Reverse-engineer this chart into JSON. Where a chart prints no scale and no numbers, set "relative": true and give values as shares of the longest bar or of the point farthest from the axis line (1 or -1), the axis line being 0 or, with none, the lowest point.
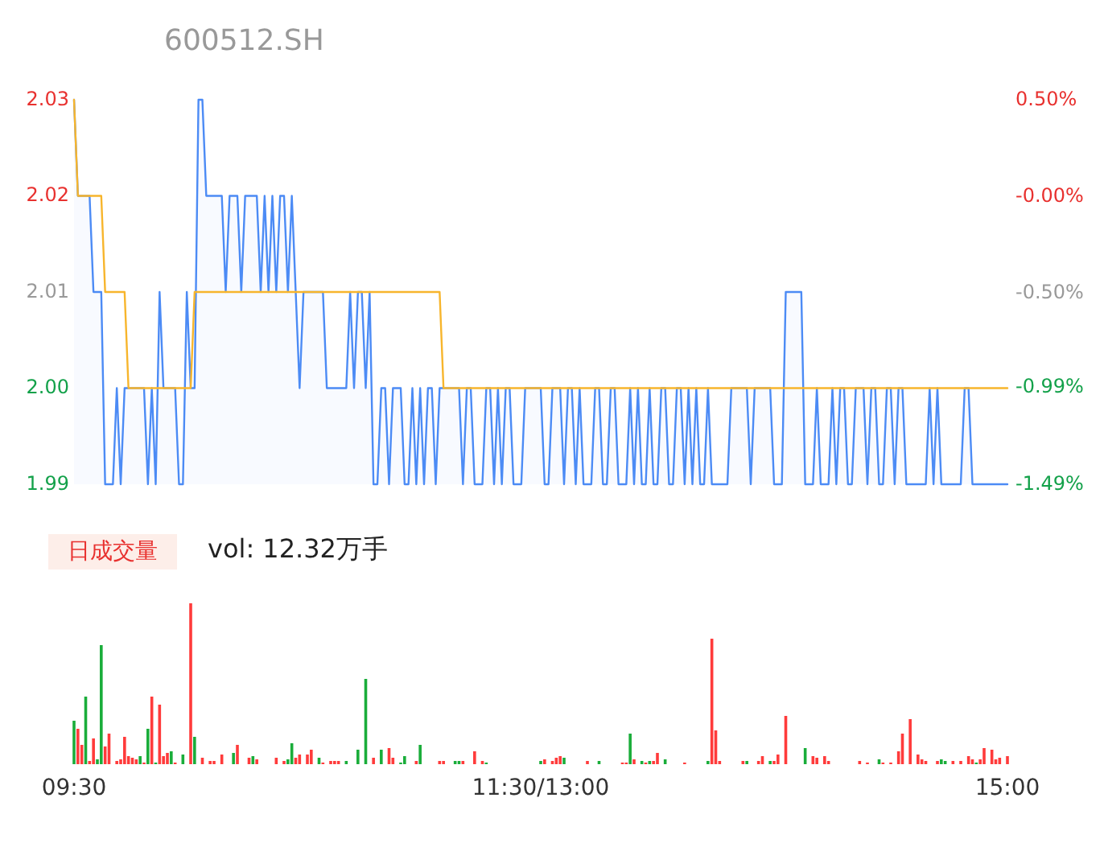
{
  "chart_data": [
    {
      "type": "line",
      "title": "600512.SH",
      "ylim": [
        1.99,
        2.03
      ],
      "yticks": [
        1.99,
        {
          "value": 2,
          "label": "2.00"
        },
        2.01,
        2.02,
        2.03
      ],
      "y2lim": [
        -1.49,
        0.5
      ],
      "y2ticks": [
        {
          "value": -1.49,
          "label": "-1.49%"
        },
        {
          "value": -0.99,
          "label": "-0.99%"
        },
        {
          "value": -0.5,
          "label": "-0.50%"
        },
        {
          "value": 0,
          "label": "-0.00%"
        },
        {
          "value": 0.5,
          "label": "0.50%"
        }
      ],
      "tick_labels": "y",
      "categories": [
        null,
        null,
        null,
        null,
        null,
        null,
        null,
        null,
        null,
        null,
        null,
        null,
        null,
        null,
        null,
        null,
        null,
        null,
        null,
        null,
        null,
        null,
        null,
        null,
        null,
        null,
        null,
        null,
        null,
        null,
        null,
        null,
        null,
        null,
        null,
        null,
        null,
        null,
        null,
        null,
        null,
        null,
        null,
        null,
        null,
        null,
        null,
        null,
        null,
        null,
        null,
        null,
        null,
        null,
        null,
        null,
        null,
        null,
        null,
        null,
        null,
        null,
        null,
        null,
        null,
        null,
        null,
        null,
        null,
        null,
        null,
        null,
        null,
        null,
        null,
        null,
        null,
        null,
        null,
        null,
        null,
        null,
        null,
        null,
        null,
        null,
        null,
        null,
        null,
        null,
        null,
        null,
        null,
        null,
        null,
        null,
        null,
        null,
        null,
        null,
        null,
        null,
        null,
        null,
        null,
        null,
        null,
        null,
        null,
        null,
        null,
        null,
        null,
        null,
        null,
        null,
        null,
        null,
        null,
        null,
        null,
        null,
        null,
        null,
        null,
        null,
        null,
        null,
        null,
        null,
        null,
        null,
        null,
        null,
        null,
        null,
        null,
        null,
        null,
        null,
        null,
        null,
        null,
        null,
        null,
        null,
        null,
        null,
        null,
        null,
        null,
        null,
        null,
        null,
        null,
        null,
        null,
        null,
        null,
        null,
        null,
        null,
        null,
        null,
        null,
        null,
        null,
        null,
        null,
        null,
        null,
        null,
        null,
        null,
        null,
        null,
        null,
        null,
        null,
        null,
        null,
        null,
        null,
        null,
        null,
        null,
        null,
        null,
        null,
        null,
        null,
        null,
        null,
        null,
        null,
        null,
        null,
        null,
        null,
        null,
        null,
        null,
        null,
        null,
        null,
        null,
        null,
        null,
        null,
        null,
        null,
        null,
        null,
        null,
        null,
        null,
        null,
        null,
        null,
        null,
        null,
        null,
        null,
        null,
        null,
        null,
        null,
        null,
        null,
        null,
        null,
        null,
        null,
        null,
        null,
        null,
        null,
        null,
        null,
        null,
        null
      ],
      "series": [
        {
          "type": "area",
          "color": "#4c8bf5",
          "values": [
            2.03,
            2.02,
            2.02,
            2.02,
            2.02,
            2.01,
            2.01,
            2.01,
            1.99,
            1.99,
            1.99,
            2.0,
            1.99,
            2.0,
            2.0,
            2.0,
            2.0,
            2.0,
            2.0,
            1.99,
            2.0,
            1.99,
            2.01,
            2.0,
            2.0,
            2.0,
            2.0,
            1.99,
            1.99,
            2.01,
            2.0,
            2.0,
            2.03,
            2.03,
            2.02,
            2.02,
            2.02,
            2.02,
            2.02,
            2.01,
            2.02,
            2.02,
            2.02,
            2.01,
            2.02,
            2.02,
            2.02,
            2.02,
            2.01,
            2.02,
            2.01,
            2.02,
            2.01,
            2.02,
            2.02,
            2.01,
            2.02,
            2.01,
            2.0,
            2.01,
            2.01,
            2.01,
            2.01,
            2.01,
            2.01,
            2.0,
            2.0,
            2.0,
            2.0,
            2.0,
            2.0,
            2.01,
            2.0,
            2.01,
            2.01,
            2.0,
            2.01,
            1.99,
            1.99,
            2.0,
            2.0,
            1.99,
            2.0,
            2.0,
            2.0,
            1.99,
            1.99,
            2.0,
            1.99,
            2.0,
            1.99,
            2.0,
            2.0,
            1.99,
            2.0,
            2.0,
            2.0,
            2.0,
            2.0,
            2.0,
            1.99,
            2.0,
            2.0,
            1.99,
            1.99,
            1.99,
            2.0,
            2.0,
            1.99,
            2.0,
            1.99,
            2.0,
            2.0,
            1.99,
            1.99,
            1.99,
            2.0,
            2.0,
            2.0,
            2.0,
            2.0,
            1.99,
            1.99,
            2.0,
            2.0,
            2.0,
            1.99,
            2.0,
            2.0,
            1.99,
            2.0,
            1.99,
            1.99,
            1.99,
            2.0,
            2.0,
            1.99,
            1.99,
            2.0,
            2.0,
            1.99,
            1.99,
            1.99,
            2.0,
            1.99,
            2.0,
            1.99,
            1.99,
            2.0,
            1.99,
            1.99,
            2.0,
            2.0,
            1.99,
            1.99,
            2.0,
            2.0,
            1.99,
            2.0,
            1.99,
            2.0,
            1.99,
            1.99,
            2.0,
            1.99,
            1.99,
            1.99,
            1.99,
            1.99,
            2.0,
            2.0,
            2.0,
            2.0,
            2.0,
            1.99,
            2.0,
            2.0,
            2.0,
            2.0,
            2.0,
            1.99,
            1.99,
            1.99,
            2.01,
            2.01,
            2.01,
            2.01,
            2.01,
            1.99,
            1.99,
            1.99,
            2.0,
            1.99,
            1.99,
            1.99,
            2.0,
            1.99,
            2.0,
            2.0,
            1.99,
            1.99,
            2.0,
            2.0,
            2.0,
            1.99,
            2.0,
            2.0,
            1.99,
            1.99,
            2.0,
            2.0,
            1.99,
            2.0,
            2.0,
            1.99,
            1.99,
            1.99,
            1.99,
            1.99,
            1.99,
            2.0,
            1.99,
            2.0,
            1.99,
            1.99,
            1.99,
            1.99,
            1.99,
            1.99,
            2.0,
            2.0,
            1.99,
            1.99,
            1.99,
            1.99,
            1.99,
            1.99,
            1.99,
            1.99,
            1.99,
            1.99
          ]
        },
        {
          "color": "#f7b52c",
          "values": [
            2.03,
            2.02,
            2.02,
            2.02,
            2.02,
            2.02,
            2.02,
            2.02,
            2.01,
            2.01,
            2.01,
            2.01,
            2.01,
            2.01,
            2.0,
            2.0,
            2.0,
            2.0,
            2.0,
            2.0,
            2.0,
            2.0,
            2.0,
            2.0,
            2.0,
            2.0,
            2.0,
            2.0,
            2.0,
            2.0,
            2.0,
            2.01,
            2.01,
            2.01,
            2.01,
            2.01,
            2.01,
            2.01,
            2.01,
            2.01,
            2.01,
            2.01,
            2.01,
            2.01,
            2.01,
            2.01,
            2.01,
            2.01,
            2.01,
            2.01,
            2.01,
            2.01,
            2.01,
            2.01,
            2.01,
            2.01,
            2.01,
            2.01,
            2.01,
            2.01,
            2.01,
            2.01,
            2.01,
            2.01,
            2.01,
            2.01,
            2.01,
            2.01,
            2.01,
            2.01,
            2.01,
            2.01,
            2.01,
            2.01,
            2.01,
            2.01,
            2.01,
            2.01,
            2.01,
            2.01,
            2.01,
            2.01,
            2.01,
            2.01,
            2.01,
            2.01,
            2.01,
            2.01,
            2.01,
            2.01,
            2.01,
            2.01,
            2.01,
            2.01,
            2.01,
            2.0,
            2.0,
            2.0,
            2.0,
            2.0,
            2.0,
            2.0,
            2.0,
            2.0,
            2.0,
            2.0,
            2.0,
            2.0,
            2.0,
            2.0,
            2.0,
            2.0,
            2.0,
            2.0,
            2.0,
            2.0,
            2.0,
            2.0,
            2.0,
            2.0,
            2.0,
            2.0,
            2.0,
            2.0,
            2.0,
            2.0,
            2.0,
            2.0,
            2.0,
            2.0,
            2.0,
            2.0,
            2.0,
            2.0,
            2.0,
            2.0,
            2.0,
            2.0,
            2.0,
            2.0,
            2.0,
            2.0,
            2.0,
            2.0,
            2.0,
            2.0,
            2.0,
            2.0,
            2.0,
            2.0,
            2.0,
            2.0,
            2.0,
            2.0,
            2.0,
            2.0,
            2.0,
            2.0,
            2.0,
            2.0,
            2.0,
            2.0,
            2.0,
            2.0,
            2.0,
            2.0,
            2.0,
            2.0,
            2.0,
            2.0,
            2.0,
            2.0,
            2.0,
            2.0,
            2.0,
            2.0,
            2.0,
            2.0,
            2.0,
            2.0,
            2.0,
            2.0,
            2.0,
            2.0,
            2.0,
            2.0,
            2.0,
            2.0,
            2.0,
            2.0,
            2.0,
            2.0,
            2.0,
            2.0,
            2.0,
            2.0,
            2.0,
            2.0,
            2.0,
            2.0,
            2.0,
            2.0,
            2.0,
            2.0,
            2.0,
            2.0,
            2.0,
            2.0,
            2.0,
            2.0,
            2.0,
            2.0,
            2.0,
            2.0,
            2.0,
            2.0,
            2.0,
            2.0,
            2.0,
            2.0,
            2.0,
            2.0,
            2.0,
            2.0,
            2.0,
            2.0,
            2.0,
            2.0,
            2.0,
            2.0,
            2.0,
            2.0,
            2.0,
            2.0,
            2.0,
            2.0,
            2.0,
            2.0,
            2.0,
            2.0,
            2.0
          ]
        }
      ]
    },
    {
      "type": "bar",
      "title": "日成交量",
      "subtitle": "vol: 12.32万手",
      "relative": true,
      "tick_labels": "x",
      "categories": [
        "09:30",
        null,
        null,
        null,
        null,
        null,
        null,
        null,
        null,
        null,
        null,
        null,
        null,
        null,
        null,
        null,
        null,
        null,
        null,
        null,
        null,
        null,
        null,
        null,
        null,
        null,
        null,
        null,
        null,
        null,
        null,
        null,
        null,
        null,
        null,
        null,
        null,
        null,
        null,
        null,
        null,
        null,
        null,
        null,
        null,
        null,
        null,
        null,
        null,
        null,
        null,
        null,
        null,
        null,
        null,
        null,
        null,
        null,
        null,
        null,
        null,
        null,
        null,
        null,
        null,
        null,
        null,
        null,
        null,
        null,
        null,
        null,
        null,
        null,
        null,
        null,
        null,
        null,
        null,
        null,
        null,
        null,
        null,
        null,
        null,
        null,
        null,
        null,
        null,
        null,
        null,
        null,
        null,
        null,
        null,
        null,
        null,
        null,
        null,
        null,
        null,
        null,
        null,
        null,
        null,
        null,
        null,
        null,
        null,
        null,
        null,
        null,
        null,
        null,
        null,
        null,
        null,
        null,
        null,
        null,
        "11:30/13:00",
        null,
        null,
        null,
        null,
        null,
        null,
        null,
        null,
        null,
        null,
        null,
        null,
        null,
        null,
        null,
        null,
        null,
        null,
        null,
        null,
        null,
        null,
        null,
        null,
        null,
        null,
        null,
        null,
        null,
        null,
        null,
        null,
        null,
        null,
        null,
        null,
        null,
        null,
        null,
        null,
        null,
        null,
        null,
        null,
        null,
        null,
        null,
        null,
        null,
        null,
        null,
        null,
        null,
        null,
        null,
        null,
        null,
        null,
        null,
        null,
        null,
        null,
        null,
        null,
        null,
        null,
        null,
        null,
        null,
        null,
        null,
        null,
        null,
        null,
        null,
        null,
        null,
        null,
        null,
        null,
        null,
        null,
        null,
        null,
        null,
        null,
        null,
        null,
        null,
        null,
        null,
        null,
        null,
        null,
        null,
        null,
        null,
        null,
        null,
        null,
        null,
        null,
        null,
        null,
        null,
        null,
        null,
        null,
        null,
        null,
        null,
        null,
        null,
        null,
        null,
        null,
        null,
        null,
        null,
        "15:00"
      ],
      "series": [
        {
          "color": "#ff3b3b",
          "values": [
            null,
            0.22,
            0.12,
            null,
            0.02,
            0.16,
            null,
            null,
            0.11,
            0.19,
            null,
            0.02,
            0.03,
            0.17,
            0.05,
            0.04,
            0.03,
            null,
            0.01,
            null,
            0.42,
            null,
            0.37,
            0.05,
            0.07,
            null,
            0.01,
            null,
            null,
            null,
            1.0,
            null,
            null,
            0.04,
            null,
            0.02,
            0.02,
            null,
            0.06,
            null,
            null,
            null,
            0.12,
            null,
            null,
            0.04,
            null,
            0.03,
            null,
            null,
            null,
            null,
            0.04,
            null,
            0.02,
            null,
            null,
            0.04,
            0.06,
            null,
            0.06,
            0.09,
            null,
            null,
            0.01,
            null,
            0.02,
            0.02,
            0.02,
            null,
            null,
            null,
            null,
            null,
            null,
            null,
            null,
            0.04,
            null,
            null,
            null,
            0.1,
            0.04,
            null,
            null,
            null,
            null,
            null,
            0.02,
            null,
            null,
            null,
            null,
            null,
            0.02,
            0.02,
            null,
            null,
            null,
            null,
            0.02,
            null,
            null,
            0.08,
            null,
            0.02,
            null,
            null,
            null,
            null,
            null,
            null,
            null,
            null,
            null,
            null,
            null,
            null,
            null,
            null,
            null,
            0.03,
            null,
            0.02,
            0.04,
            0.05,
            null,
            null,
            null,
            null,
            null,
            null,
            0.02,
            null,
            null,
            null,
            null,
            null,
            null,
            null,
            null,
            0.01,
            0.01,
            null,
            0.03,
            null,
            null,
            0.01,
            null,
            0.02,
            0.07,
            null,
            null,
            null,
            null,
            null,
            null,
            0.01,
            null,
            null,
            null,
            null,
            null,
            null,
            0.78,
            0.21,
            0.02,
            null,
            null,
            null,
            null,
            null,
            0.02,
            null,
            null,
            null,
            0.02,
            0.05,
            null,
            null,
            0.02,
            0.06,
            null,
            0.3,
            null,
            null,
            null,
            null,
            null,
            null,
            0.05,
            0.04,
            null,
            0.05,
            0.02,
            null,
            null,
            null,
            null,
            null,
            null,
            null,
            0.02,
            null,
            0.01,
            null,
            null,
            null,
            0.01,
            null,
            0.01,
            null,
            0.08,
            0.19,
            null,
            0.28,
            null,
            0.06,
            0.03,
            0.02,
            null,
            null,
            0.02,
            null,
            null,
            null,
            0.02,
            null,
            0.02,
            null,
            0.05,
            0.03,
            null,
            0.03,
            0.1,
            null,
            0.09,
            0.03,
            0.04,
            null,
            0.05
          ]
        },
        {
          "color": "#1aad3a",
          "values": [
            0.27,
            null,
            null,
            0.42,
            null,
            null,
            0.03,
            0.74,
            null,
            null,
            null,
            null,
            null,
            null,
            null,
            null,
            null,
            0.05,
            null,
            0.22,
            null,
            0.01,
            null,
            null,
            null,
            0.08,
            null,
            null,
            0.06,
            null,
            null,
            0.17,
            null,
            null,
            null,
            null,
            null,
            null,
            null,
            null,
            null,
            0.07,
            null,
            null,
            null,
            null,
            0.05,
            null,
            null,
            null,
            null,
            null,
            null,
            null,
            null,
            0.03,
            0.13,
            null,
            null,
            null,
            null,
            null,
            null,
            0.04,
            null,
            null,
            null,
            null,
            null,
            null,
            0.02,
            null,
            null,
            0.09,
            null,
            0.53,
            null,
            null,
            null,
            0.09,
            null,
            null,
            null,
            null,
            0.01,
            0.05,
            null,
            null,
            null,
            0.12,
            null,
            null,
            null,
            null,
            null,
            null,
            null,
            null,
            0.02,
            0.02,
            null,
            null,
            null,
            null,
            null,
            null,
            0.01,
            null,
            null,
            null,
            null,
            null,
            null,
            null,
            null,
            null,
            null,
            null,
            null,
            null,
            0.02,
            null,
            null,
            null,
            null,
            null,
            0.04,
            null,
            null,
            null,
            null,
            null,
            null,
            null,
            null,
            0.02,
            null,
            null,
            null,
            null,
            null,
            null,
            null,
            0.19,
            null,
            null,
            0.02,
            null,
            0.02,
            null,
            null,
            null,
            0.03,
            null,
            null,
            null,
            null,
            null,
            null,
            null,
            null,
            null,
            null,
            0.02,
            null,
            null,
            null,
            null,
            null,
            null,
            null,
            null,
            null,
            0.02,
            null,
            null,
            null,
            null,
            null,
            0.02,
            null,
            null,
            null,
            null,
            null,
            null,
            null,
            null,
            0.1,
            null,
            null,
            null,
            null,
            null,
            null,
            null,
            null,
            null,
            null,
            null,
            null,
            null,
            null,
            null,
            null,
            null,
            null,
            0.03,
            null,
            null,
            null,
            null,
            null,
            null,
            null,
            null,
            null,
            null,
            null,
            null,
            null,
            null,
            null,
            0.03,
            0.02,
            null,
            null,
            null,
            null,
            null,
            null,
            null,
            0.01,
            null,
            null,
            null,
            null,
            null,
            null,
            null,
            null
          ]
        }
      ]
    }
  ]
}
